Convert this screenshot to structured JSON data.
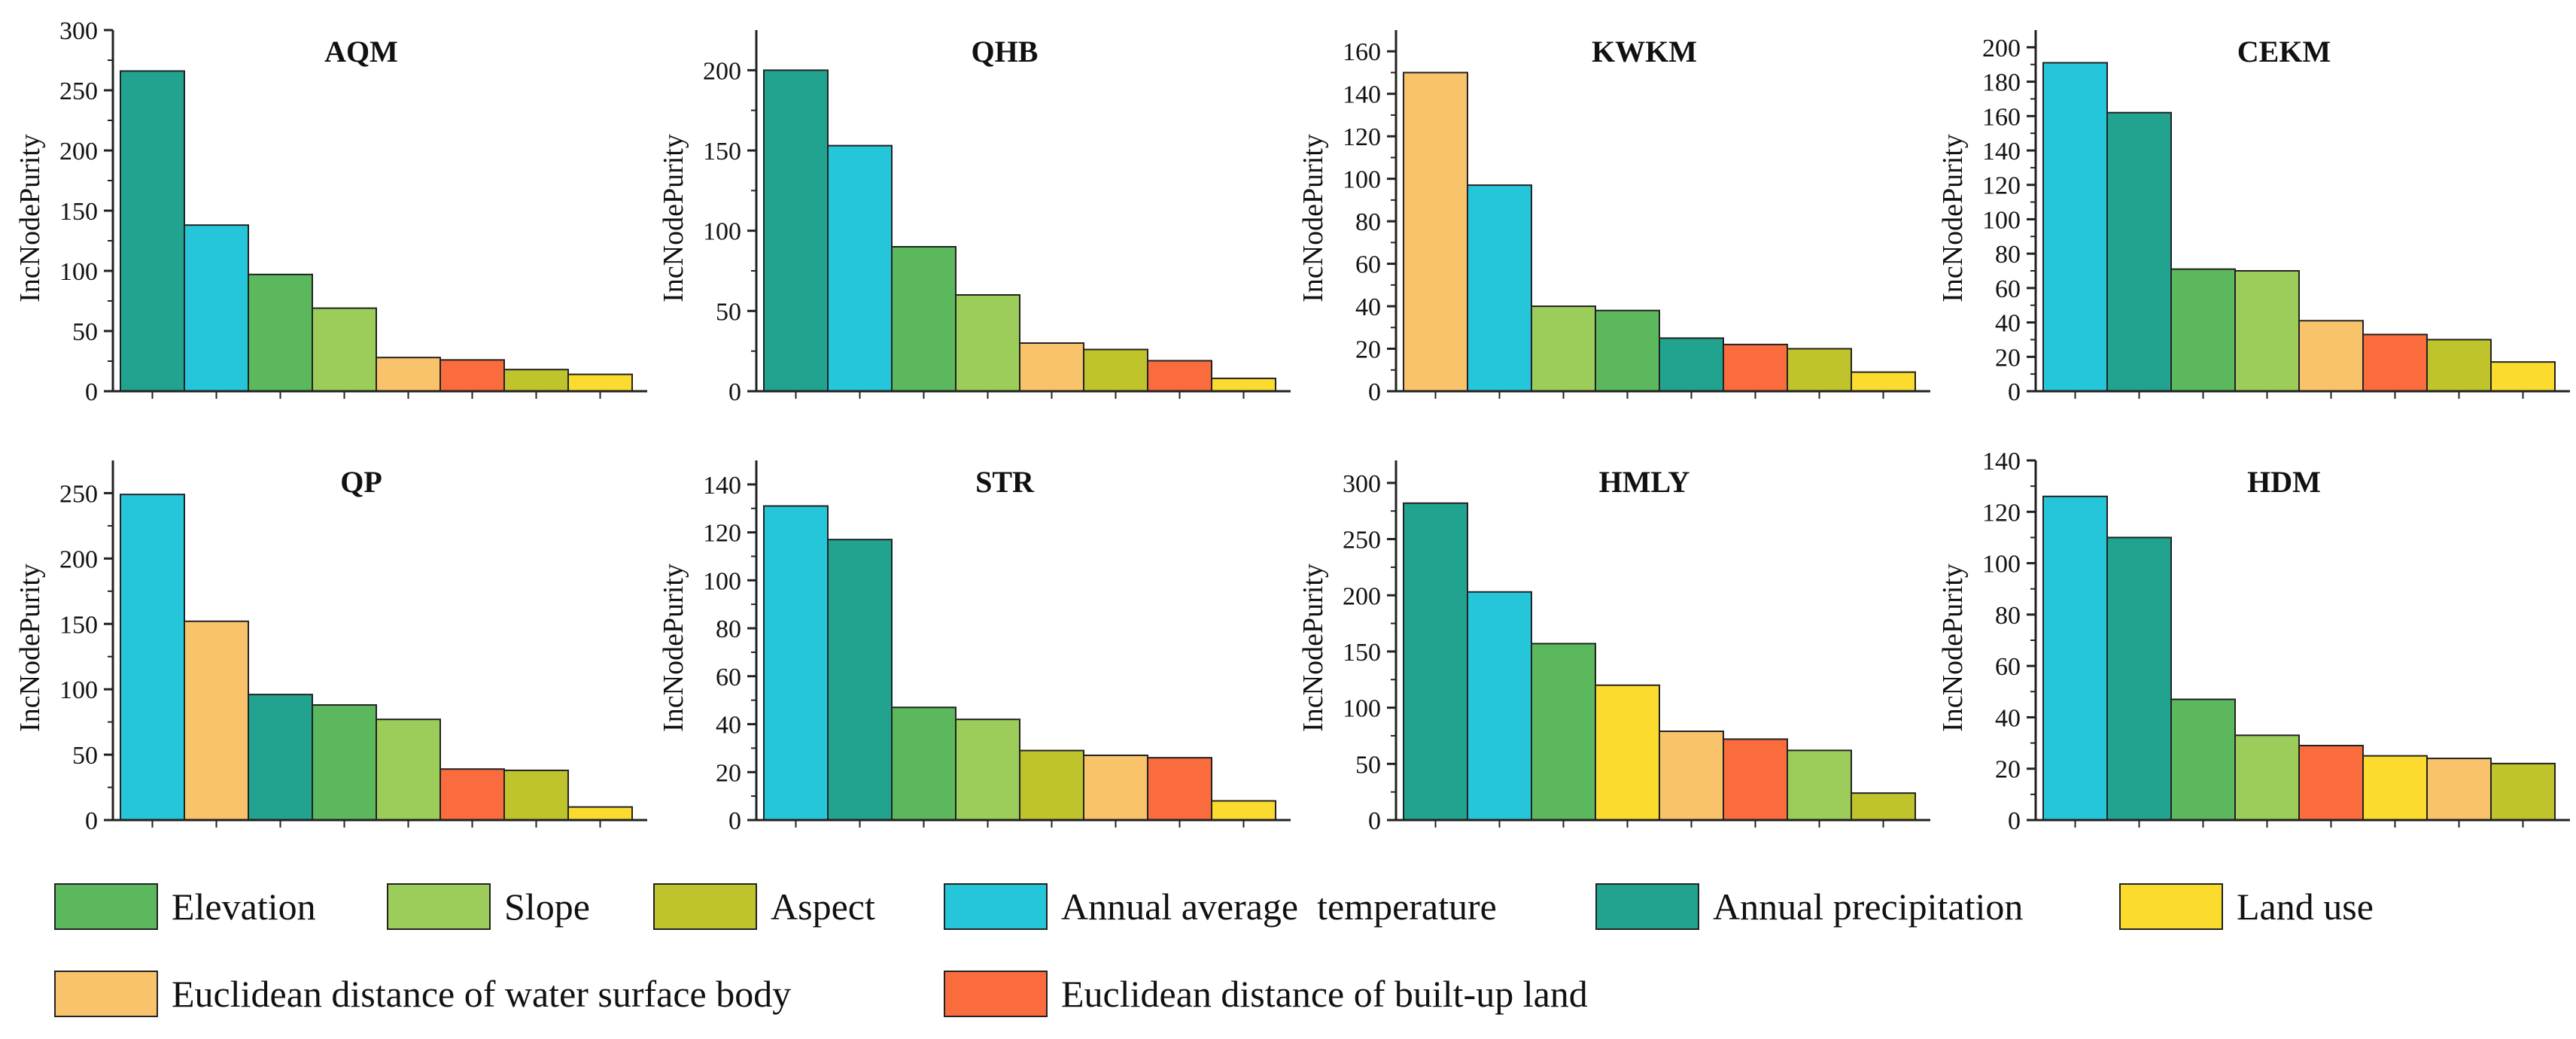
{
  "chart_data": [
    {
      "type": "bar",
      "title": "AQM",
      "ylabel": "IncNodePurity",
      "xlabel": "",
      "ylim": [
        0,
        300
      ],
      "yticks": [
        "0",
        "50",
        "100",
        "150",
        "200",
        "250",
        "300"
      ],
      "series": [
        {
          "name": "Annual precipitation",
          "value": 266
        },
        {
          "name": "Annual average  temperature",
          "value": 138
        },
        {
          "name": "Elevation",
          "value": 97
        },
        {
          "name": "Slope",
          "value": 69
        },
        {
          "name": "Euclidean distance of water surface body",
          "value": 28
        },
        {
          "name": "Euclidean distance of built-up land",
          "value": 26
        },
        {
          "name": "Aspect",
          "value": 18
        },
        {
          "name": "Land use",
          "value": 14
        }
      ]
    },
    {
      "type": "bar",
      "title": "QHB",
      "ylabel": "IncNodePurity",
      "xlabel": "",
      "ylim": [
        0,
        225
      ],
      "yticks": [
        "0",
        "50",
        "100",
        "150",
        "200"
      ],
      "series": [
        {
          "name": "Annual precipitation",
          "value": 200
        },
        {
          "name": "Annual average  temperature",
          "value": 153
        },
        {
          "name": "Elevation",
          "value": 90
        },
        {
          "name": "Slope",
          "value": 60
        },
        {
          "name": "Euclidean distance of water surface body",
          "value": 30
        },
        {
          "name": "Aspect",
          "value": 26
        },
        {
          "name": "Euclidean distance of built-up land",
          "value": 19
        },
        {
          "name": "Land use",
          "value": 8
        }
      ]
    },
    {
      "type": "bar",
      "title": "KWKM",
      "ylabel": "IncNodePurity",
      "xlabel": "",
      "ylim": [
        0,
        170
      ],
      "yticks": [
        "0",
        "20",
        "40",
        "60",
        "80",
        "100",
        "120",
        "140",
        "160"
      ],
      "series": [
        {
          "name": "Euclidean distance of water surface body",
          "value": 150
        },
        {
          "name": "Annual average  temperature",
          "value": 97
        },
        {
          "name": "Slope",
          "value": 40
        },
        {
          "name": "Elevation",
          "value": 38
        },
        {
          "name": "Annual precipitation",
          "value": 25
        },
        {
          "name": "Euclidean distance of built-up land",
          "value": 22
        },
        {
          "name": "Aspect",
          "value": 20
        },
        {
          "name": "Land use",
          "value": 9
        }
      ]
    },
    {
      "type": "bar",
      "title": "CEKM",
      "ylabel": "IncNodePurity",
      "xlabel": "",
      "ylim": [
        0,
        210
      ],
      "yticks": [
        "0",
        "20",
        "40",
        "60",
        "80",
        "100",
        "120",
        "140",
        "160",
        "180",
        "200"
      ],
      "series": [
        {
          "name": "Annual average  temperature",
          "value": 191
        },
        {
          "name": "Annual precipitation",
          "value": 162
        },
        {
          "name": "Elevation",
          "value": 71
        },
        {
          "name": "Slope",
          "value": 70
        },
        {
          "name": "Euclidean distance of water surface body",
          "value": 41
        },
        {
          "name": "Euclidean distance of built-up land",
          "value": 33
        },
        {
          "name": "Aspect",
          "value": 30
        },
        {
          "name": "Land use",
          "value": 17
        }
      ]
    },
    {
      "type": "bar",
      "title": "QP",
      "ylabel": "IncNodePurity",
      "xlabel": "",
      "ylim": [
        0,
        275
      ],
      "yticks": [
        "0",
        "50",
        "100",
        "150",
        "200",
        "250"
      ],
      "series": [
        {
          "name": "Annual average  temperature",
          "value": 249
        },
        {
          "name": "Euclidean distance of water surface body",
          "value": 152
        },
        {
          "name": "Annual precipitation",
          "value": 96
        },
        {
          "name": "Elevation",
          "value": 88
        },
        {
          "name": "Slope",
          "value": 77
        },
        {
          "name": "Euclidean distance of built-up land",
          "value": 39
        },
        {
          "name": "Aspect",
          "value": 38
        },
        {
          "name": "Land use",
          "value": 10
        }
      ]
    },
    {
      "type": "bar",
      "title": "STR",
      "ylabel": "IncNodePurity",
      "xlabel": "",
      "ylim": [
        0,
        150
      ],
      "yticks": [
        "0",
        "20",
        "40",
        "60",
        "80",
        "100",
        "120",
        "140"
      ],
      "series": [
        {
          "name": "Annual average  temperature",
          "value": 131
        },
        {
          "name": "Annual precipitation",
          "value": 117
        },
        {
          "name": "Elevation",
          "value": 47
        },
        {
          "name": "Slope",
          "value": 42
        },
        {
          "name": "Aspect",
          "value": 29
        },
        {
          "name": "Euclidean distance of water surface body",
          "value": 27
        },
        {
          "name": "Euclidean distance of built-up land",
          "value": 26
        },
        {
          "name": "Land use",
          "value": 8
        }
      ]
    },
    {
      "type": "bar",
      "title": "HMLY",
      "ylabel": "IncNodePurity",
      "xlabel": "",
      "ylim": [
        0,
        320
      ],
      "yticks": [
        "0",
        "50",
        "100",
        "150",
        "200",
        "250",
        "300"
      ],
      "series": [
        {
          "name": "Annual precipitation",
          "value": 282
        },
        {
          "name": "Annual average  temperature",
          "value": 203
        },
        {
          "name": "Elevation",
          "value": 157
        },
        {
          "name": "Land use",
          "value": 120
        },
        {
          "name": "Euclidean distance of water surface body",
          "value": 79
        },
        {
          "name": "Euclidean distance of built-up land",
          "value": 72
        },
        {
          "name": "Slope",
          "value": 62
        },
        {
          "name": "Aspect",
          "value": 24
        }
      ]
    },
    {
      "type": "bar",
      "title": "HDM",
      "ylabel": "IncNodePurity",
      "xlabel": "",
      "ylim": [
        0,
        140
      ],
      "yticks": [
        "0",
        "20",
        "40",
        "60",
        "80",
        "100",
        "120",
        "140"
      ],
      "series": [
        {
          "name": "Annual average  temperature",
          "value": 126
        },
        {
          "name": "Annual precipitation",
          "value": 110
        },
        {
          "name": "Elevation",
          "value": 47
        },
        {
          "name": "Slope",
          "value": 33
        },
        {
          "name": "Euclidean distance of built-up land",
          "value": 29
        },
        {
          "name": "Land use",
          "value": 25
        },
        {
          "name": "Euclidean distance of water surface body",
          "value": 24
        },
        {
          "name": "Aspect",
          "value": 22
        }
      ]
    }
  ],
  "legend": {
    "items": [
      {
        "label": "Elevation",
        "color": "#5cb85c"
      },
      {
        "label": "Slope",
        "color": "#9ccd5a"
      },
      {
        "label": "Aspect",
        "color": "#c0c42c"
      },
      {
        "label": "Annual average  temperature",
        "color": "#26c6da"
      },
      {
        "label": "Annual precipitation",
        "color": "#21a390"
      },
      {
        "label": "Land use",
        "color": "#fbdc2e"
      },
      {
        "label": "Euclidean distance of water surface body",
        "color": "#f9c36b"
      },
      {
        "label": "Euclidean distance of built-up land",
        "color": "#fa6c3d"
      }
    ]
  },
  "colors": {
    "axis": "#222222",
    "bar_stroke": "#222222"
  }
}
